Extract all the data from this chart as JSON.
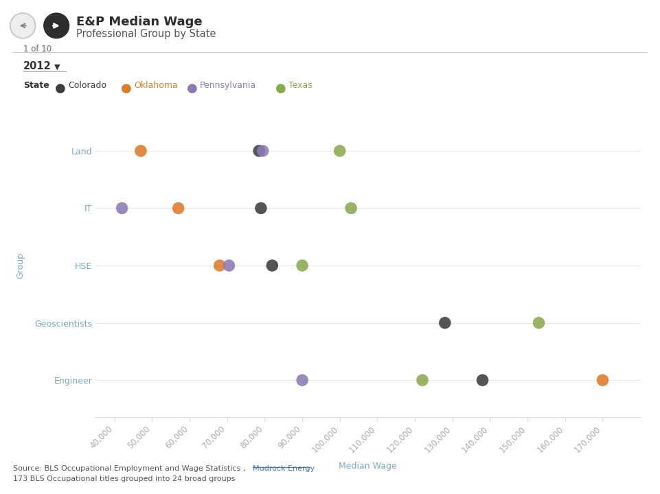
{
  "title_line1": "E&P Median Wage",
  "title_line2": "Professional Group by State",
  "subtitle_small": "1 of 10",
  "year_label": "2012",
  "state_legend_label": "State",
  "xlabel": "Median Wage",
  "ylabel": "Group",
  "groups": [
    "Engineer",
    "Geoscientists",
    "HSE",
    "IT",
    "Land"
  ],
  "states": [
    "Colorado",
    "Oklahoma",
    "Pennsylvania",
    "Texas"
  ],
  "state_colors": {
    "Colorado": "#3d3d3d",
    "Oklahoma": "#e07b28",
    "Pennsylvania": "#8b7bb5",
    "Texas": "#8aaa4e"
  },
  "plot_data": {
    "Land": {
      "Oklahoma": 47000,
      "Colorado": 78500,
      "Pennsylvania": 79500,
      "Texas": 100000
    },
    "IT": {
      "Pennsylvania": 42000,
      "Oklahoma": 57000,
      "Colorado": 79000,
      "Texas": 103000
    },
    "HSE": {
      "Oklahoma": 68000,
      "Pennsylvania": 70500,
      "Colorado": 82000,
      "Texas": 90000
    },
    "Geoscientists": {
      "Colorado": 128000,
      "Texas": 153000
    },
    "Engineer": {
      "Pennsylvania": 90000,
      "Texas": 122000,
      "Colorado": 138000,
      "Oklahoma": 170000
    }
  },
  "xlim": [
    35000,
    180000
  ],
  "xticks": [
    40000,
    50000,
    60000,
    70000,
    80000,
    90000,
    100000,
    110000,
    120000,
    130000,
    140000,
    150000,
    160000,
    170000
  ],
  "marker_size": 160,
  "bg_color": "#ffffff",
  "label_color": "#7ba7bc",
  "tick_color": "#aaaaaa",
  "grid_color": "#e8e8e8",
  "source_text1a": "Source: BLS Occupational Employment and Wage Statistics ,  ",
  "source_text1b": "Mudrock Energy",
  "source_text2": "173 BLS Occupational titles grouped into 24 broad groups",
  "header_title_color": "#2d2d2d",
  "header_sub_color": "#555555",
  "year_color": "#333333",
  "state_label_color": "#333333",
  "mudrock_color": "#4472c4"
}
